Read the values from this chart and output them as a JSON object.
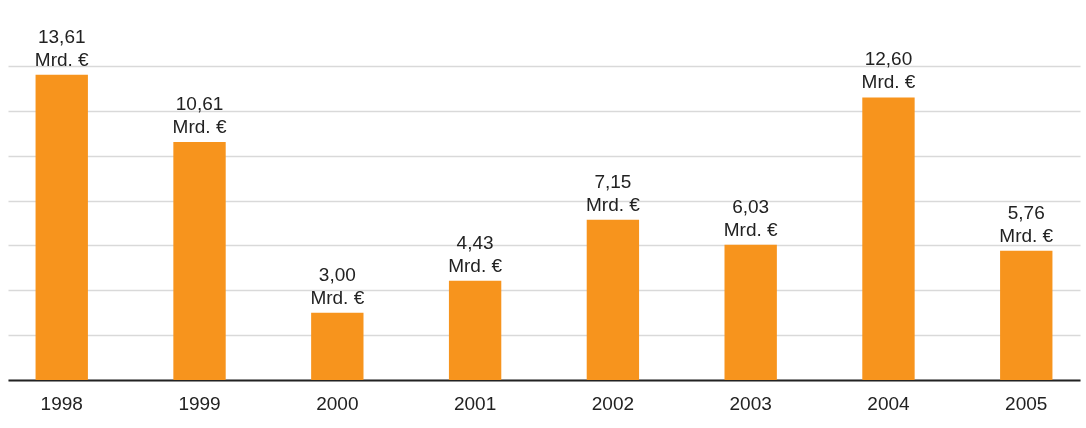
{
  "chart_data": {
    "type": "bar",
    "categories": [
      "1998",
      "1999",
      "2000",
      "2001",
      "2002",
      "2003",
      "2004",
      "2005"
    ],
    "values": [
      13.61,
      10.61,
      3.0,
      4.43,
      7.15,
      6.03,
      12.6,
      5.76
    ],
    "value_labels": [
      "13,61 Mrd. €",
      "10,61 Mrd. €",
      "3,00 Mrd. €",
      "4,43 Mrd. €",
      "7,15 Mrd. €",
      "6,03 Mrd. €",
      "12,60 Mrd. €",
      "5,76 Mrd. €"
    ],
    "color": "#f7941d",
    "grid": "y",
    "tick_labels": "x"
  }
}
